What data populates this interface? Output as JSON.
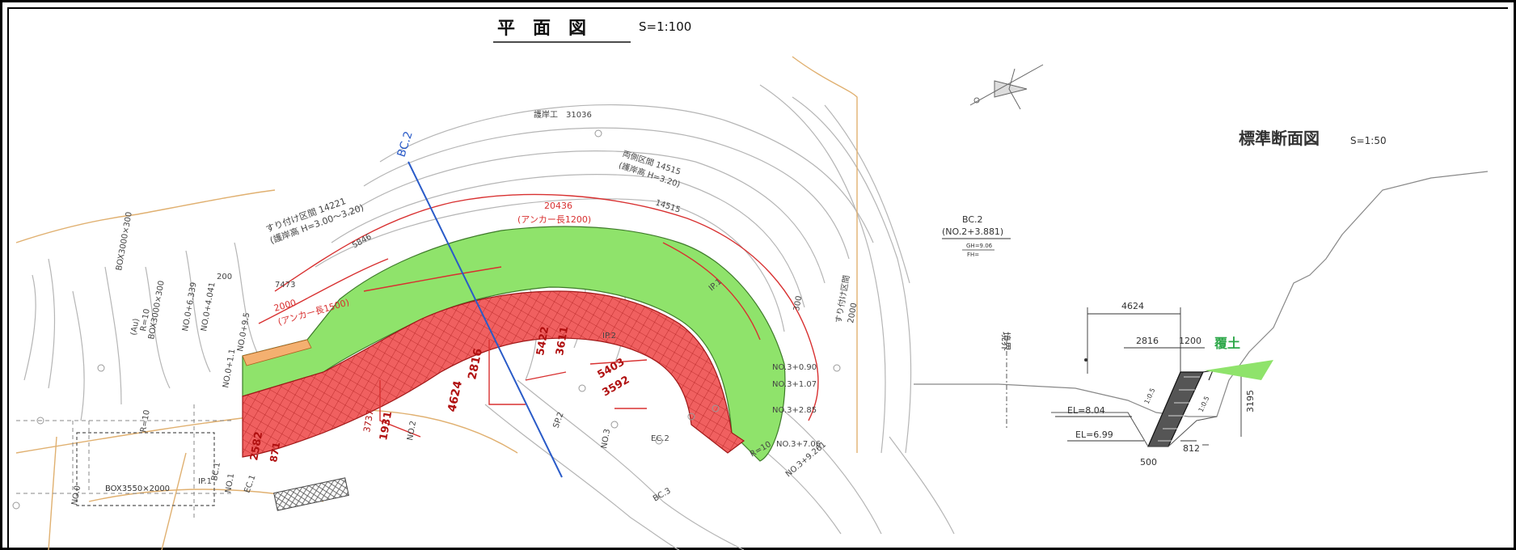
{
  "plan": {
    "title": "平　面　図",
    "scale": "S=1:100",
    "revetment_label": "護岸工　31036",
    "section_line_label": "BC.2",
    "fill_section": {
      "line1": "すり付け区間 14221",
      "line2": "(護岸高 H=3.00～3.20)"
    },
    "straight_section": {
      "line1": "両側区間 14515",
      "line2": "(護岸高 H=3.20)",
      "line3": "14515"
    },
    "anchor_long": {
      "length": "20436",
      "note": "(アンカー長1200)"
    },
    "anchor_short": {
      "length": "2000",
      "note": "(アンカー長1500)"
    },
    "dims": [
      "5846",
      "7473",
      "4624",
      "2816",
      "5422",
      "3611",
      "5403",
      "3592",
      "1931",
      "3737",
      "2582",
      "871",
      "300",
      "200"
    ],
    "stations": [
      "NO.3+0.90",
      "NO.3+1.07",
      "NO.3+2.85",
      "NO.3+7.06",
      "NO.3+9.261",
      "NO.3",
      "NO.2",
      "NO.1",
      "NO.0",
      "NO.0+1.1",
      "NO.0+4.041",
      "NO.0+6.339",
      "NO.0+9.5"
    ],
    "points": [
      "IP.1",
      "IP.2",
      "IP.1",
      "EC.1",
      "EC.2",
      "BC.1",
      "SP.2",
      "BC.3",
      "R=10",
      "R=10",
      "R=10"
    ],
    "box_culvert_main": "BOX3550×2000",
    "box_culvert_side": "BOX3000×300",
    "box_culvert_side2": "BOX3000×300",
    "right_fill_label": "すり付け区間",
    "right_fill_value": "2000",
    "au_label": "(Au)"
  },
  "section": {
    "title": "標準断面図",
    "scale": "S=1:50",
    "bc_label": "BC.2",
    "bc_station": "(NO.2+3.881)",
    "gh": "GH=9.06",
    "fh": "FH=",
    "boundary": "境界",
    "dim_top": "4624",
    "dim_left": "2816",
    "dim_right": "1200",
    "dim_height": "3195",
    "dim_base": "812",
    "dim_bottom": "500",
    "el_upper": "EL=8.04",
    "el_lower": "EL=6.99",
    "cover_soil": "覆土",
    "slope1": "1:0.5",
    "slope2": "1:0.5"
  },
  "colors": {
    "green_fill": "#8fe36b",
    "red_fill": "#f06060",
    "red_line": "#d83030",
    "blue_line": "#2a5bc8",
    "cover_green": "#2ea84a",
    "contour": "#b5b5b5",
    "road": "#e0b070"
  }
}
